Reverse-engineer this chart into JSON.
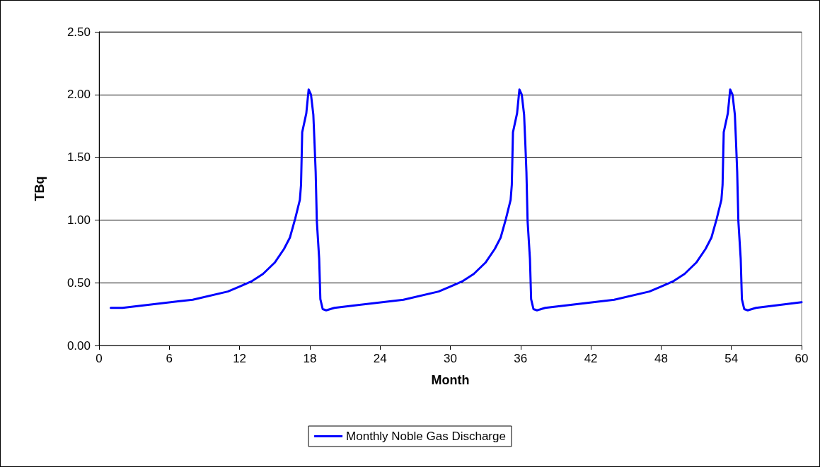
{
  "chart_data": {
    "type": "line",
    "xlabel": "Month",
    "ylabel": "TBq",
    "x": [
      1,
      2,
      8,
      11,
      12,
      13,
      14,
      15,
      15.8,
      16.3,
      16.75,
      17.15,
      17.25,
      17.35,
      17.7,
      17.9,
      18.1,
      18.3,
      18.4,
      18.5,
      18.6,
      18.8,
      18.9,
      19.1,
      19.4,
      20.1,
      26,
      29,
      30,
      31,
      32,
      33,
      33.8,
      34.3,
      34.75,
      35.15,
      35.25,
      35.35,
      35.7,
      35.9,
      36.1,
      36.3,
      36.4,
      36.5,
      36.6,
      36.8,
      36.9,
      37.1,
      37.4,
      38.1,
      44,
      47,
      48,
      49,
      50,
      51,
      51.8,
      52.3,
      52.75,
      53.15,
      53.25,
      53.35,
      53.7,
      53.9,
      54.1,
      54.3,
      54.4,
      54.5,
      54.6,
      54.8,
      54.9,
      55.1,
      55.4,
      56.1,
      60
    ],
    "series": [
      {
        "name": "Monthly Noble Gas Discharge",
        "color": "#0000ff",
        "values": [
          0.3,
          0.3,
          0.365,
          0.43,
          0.47,
          0.51,
          0.57,
          0.66,
          0.77,
          0.86,
          1.01,
          1.16,
          1.28,
          1.7,
          1.85,
          2.04,
          2.0,
          1.84,
          1.62,
          1.38,
          0.99,
          0.69,
          0.37,
          0.29,
          0.28,
          0.3,
          0.365,
          0.43,
          0.47,
          0.51,
          0.57,
          0.66,
          0.77,
          0.86,
          1.01,
          1.16,
          1.28,
          1.7,
          1.85,
          2.04,
          2.0,
          1.84,
          1.62,
          1.38,
          0.99,
          0.69,
          0.37,
          0.29,
          0.28,
          0.3,
          0.365,
          0.43,
          0.47,
          0.51,
          0.57,
          0.66,
          0.77,
          0.86,
          1.01,
          1.16,
          1.28,
          1.7,
          1.85,
          2.04,
          2.0,
          1.84,
          1.62,
          1.38,
          0.99,
          0.69,
          0.37,
          0.29,
          0.28,
          0.3,
          0.345
        ]
      }
    ],
    "xlim": [
      0,
      60
    ],
    "xticks": [
      0,
      6,
      12,
      18,
      24,
      30,
      36,
      42,
      48,
      54,
      60
    ],
    "ylim": [
      0,
      2.5
    ],
    "yticks": [
      {
        "value": 0,
        "label": "0.00"
      },
      {
        "value": 0.5,
        "label": "0.50"
      },
      {
        "value": 1,
        "label": "1.00"
      },
      {
        "value": 1.5,
        "label": "1.50"
      },
      {
        "value": 2,
        "label": "2.00"
      },
      {
        "value": 2.5,
        "label": "2.50"
      }
    ],
    "grid": "y",
    "legend": "bottom",
    "line_style": "solid"
  }
}
